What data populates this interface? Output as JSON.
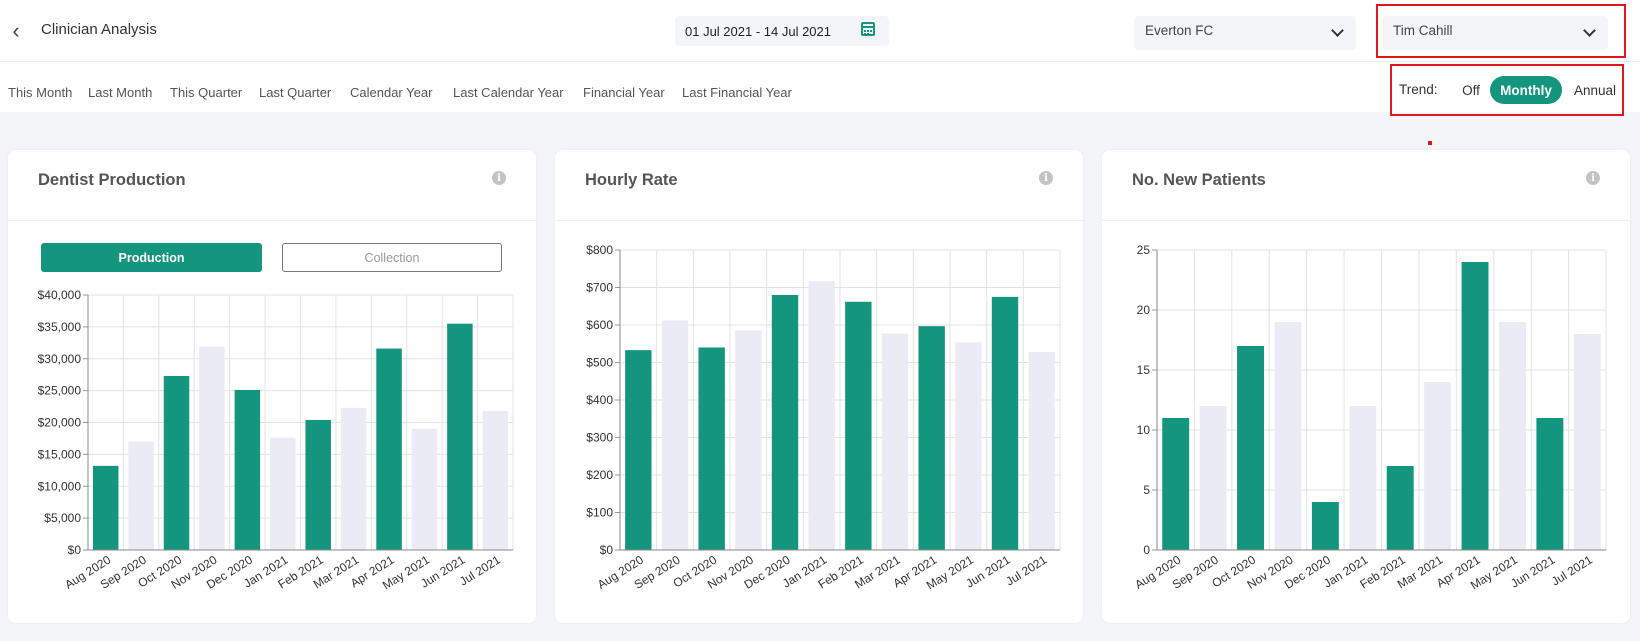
{
  "header": {
    "back_icon": "chevron-left-icon",
    "title": "Clinician Analysis",
    "date_range": "01 Jul 2021 - 14 Jul 2021",
    "calendar_icon": "calendar-icon",
    "clinic": "Everton FC",
    "clinician": "Tim Cahill"
  },
  "periods": [
    "This Month",
    "Last Month",
    "This Quarter",
    "Last Quarter",
    "Calendar Year",
    "Last Calendar Year",
    "Financial Year",
    "Last Financial Year"
  ],
  "trend": {
    "label": "Trend:",
    "options": [
      "Off",
      "Monthly",
      "Annual"
    ],
    "selected": "Monthly"
  },
  "colors": {
    "accent": "#14967e",
    "bar_alt": "#ebebf5",
    "highlight": "#e0171e"
  },
  "cards": [
    {
      "title": "Dentist Production",
      "toggle": {
        "options": [
          "Production",
          "Collection"
        ],
        "selected": "Production"
      }
    },
    {
      "title": "Hourly Rate"
    },
    {
      "title": "No. New Patients"
    }
  ],
  "chart_data": [
    {
      "type": "bar",
      "title": "Dentist Production",
      "categories": [
        "Aug 2020",
        "Sep 2020",
        "Oct 2020",
        "Nov 2020",
        "Dec 2020",
        "Jan 2021",
        "Feb 2021",
        "Mar 2021",
        "Apr 2021",
        "May 2021",
        "Jun 2021",
        "Jul 2021"
      ],
      "values": [
        13200,
        17000,
        27300,
        31900,
        25100,
        17600,
        20400,
        22300,
        31600,
        19000,
        35500,
        21800
      ],
      "ylim": [
        0,
        40000
      ],
      "yticks": [
        0,
        5000,
        10000,
        15000,
        20000,
        25000,
        30000,
        35000,
        40000
      ],
      "ytick_labels": [
        "$0",
        "$5,000",
        "$10,000",
        "$15,000",
        "$20,000",
        "$25,000",
        "$30,000",
        "$35,000",
        "$40,000"
      ],
      "grid": true
    },
    {
      "type": "bar",
      "title": "Hourly Rate",
      "categories": [
        "Aug 2020",
        "Sep 2020",
        "Oct 2020",
        "Nov 2020",
        "Dec 2020",
        "Jan 2021",
        "Feb 2021",
        "Mar 2021",
        "Apr 2021",
        "May 2021",
        "Jun 2021",
        "Jul 2021"
      ],
      "values": [
        533,
        612,
        540,
        586,
        680,
        717,
        662,
        577,
        597,
        554,
        675,
        528
      ],
      "ylim": [
        0,
        800
      ],
      "yticks": [
        0,
        100,
        200,
        300,
        400,
        500,
        600,
        700,
        800
      ],
      "ytick_labels": [
        "$0",
        "$100",
        "$200",
        "$300",
        "$400",
        "$500",
        "$600",
        "$700",
        "$800"
      ],
      "grid": true
    },
    {
      "type": "bar",
      "title": "No. New Patients",
      "categories": [
        "Aug 2020",
        "Sep 2020",
        "Oct 2020",
        "Nov 2020",
        "Dec 2020",
        "Jan 2021",
        "Feb 2021",
        "Mar 2021",
        "Apr 2021",
        "May 2021",
        "Jun 2021",
        "Jul 2021"
      ],
      "values": [
        11,
        12,
        17,
        19,
        4,
        12,
        7,
        14,
        24,
        19,
        11,
        18
      ],
      "ylim": [
        0,
        25
      ],
      "yticks": [
        0,
        5,
        10,
        15,
        20,
        25
      ],
      "ytick_labels": [
        "0",
        "5",
        "10",
        "15",
        "20",
        "25"
      ],
      "grid": true
    }
  ]
}
